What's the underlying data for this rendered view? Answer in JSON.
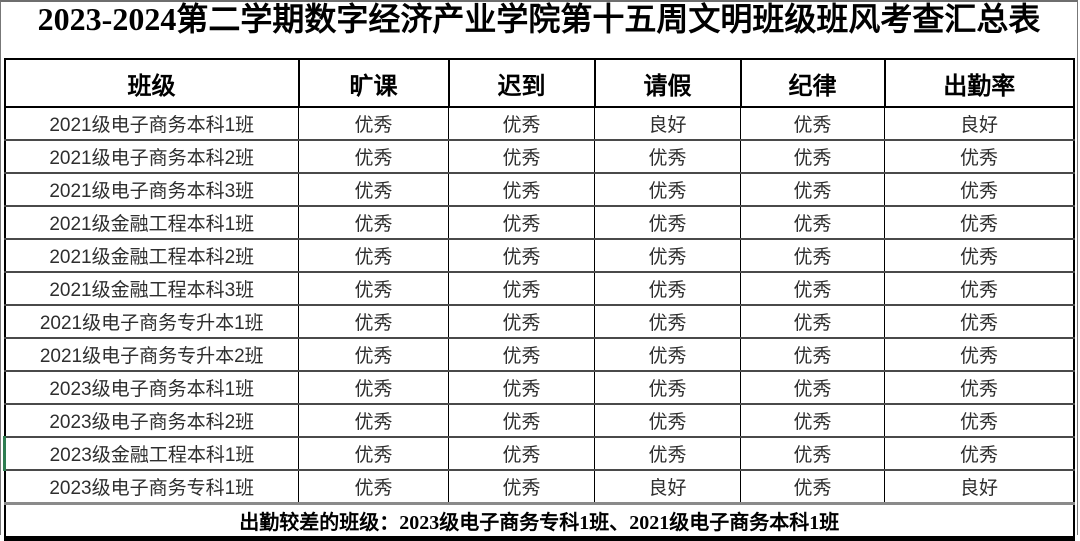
{
  "title": "2023-2024第二学期数字经济产业学院第十五周文明班级班风考查汇总表",
  "table": {
    "columns": [
      "班级",
      "旷课",
      "迟到",
      "请假",
      "纪律",
      "出勤率"
    ],
    "rows": [
      [
        "2021级电子商务本科1班",
        "优秀",
        "优秀",
        "良好",
        "优秀",
        "良好"
      ],
      [
        "2021级电子商务本科2班",
        "优秀",
        "优秀",
        "优秀",
        "优秀",
        "优秀"
      ],
      [
        "2021级电子商务本科3班",
        "优秀",
        "优秀",
        "优秀",
        "优秀",
        "优秀"
      ],
      [
        "2021级金融工程本科1班",
        "优秀",
        "优秀",
        "优秀",
        "优秀",
        "优秀"
      ],
      [
        "2021级金融工程本科2班",
        "优秀",
        "优秀",
        "优秀",
        "优秀",
        "优秀"
      ],
      [
        "2021级金融工程本科3班",
        "优秀",
        "优秀",
        "优秀",
        "优秀",
        "优秀"
      ],
      [
        "2021级电子商务专升本1班",
        "优秀",
        "优秀",
        "优秀",
        "优秀",
        "优秀"
      ],
      [
        "2021级电子商务专升本2班",
        "优秀",
        "优秀",
        "优秀",
        "优秀",
        "优秀"
      ],
      [
        "2023级电子商务本科1班",
        "优秀",
        "优秀",
        "优秀",
        "优秀",
        "优秀"
      ],
      [
        "2023级电子商务本科2班",
        "优秀",
        "优秀",
        "优秀",
        "优秀",
        "优秀"
      ],
      [
        "2023级金融工程本科1班",
        "优秀",
        "优秀",
        "优秀",
        "优秀",
        "优秀"
      ],
      [
        "2023级电子商务专科1班",
        "优秀",
        "优秀",
        "良好",
        "优秀",
        "良好"
      ]
    ],
    "green_marker_row": 10
  },
  "footer": {
    "note": "出勤较差的班级：2023级电子商务专科1班、2021级电子商务本科1班"
  },
  "colors": {
    "marker_green": "#2e7d51",
    "border_black": "#000000",
    "border_gray": "#8a8a8a"
  }
}
